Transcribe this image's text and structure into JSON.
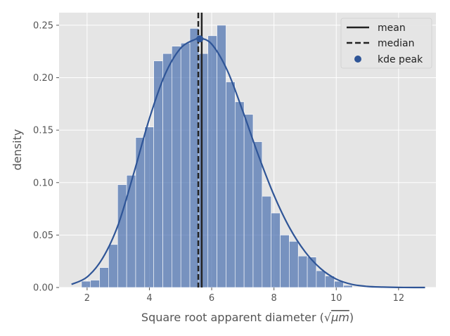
{
  "chart_data": {
    "type": "bar",
    "title": "",
    "xlabel": "Square root apparent diameter (√μm)",
    "xlabel_prefix": "Square root apparent diameter (",
    "xlabel_unit": "μm",
    "xlabel_suffix": ")",
    "ylabel": "density",
    "xlim": [
      1.1,
      13.2
    ],
    "ylim": [
      0,
      0.262
    ],
    "xticks": [
      "2",
      "4",
      "6",
      "8",
      "10",
      "12"
    ],
    "xtick_values": [
      2,
      4,
      6,
      8,
      10,
      12
    ],
    "yticks": [
      "0.00",
      "0.05",
      "0.10",
      "0.15",
      "0.20",
      "0.25"
    ],
    "ytick_values": [
      0,
      0.05,
      0.1,
      0.15,
      0.2,
      0.25
    ],
    "grid": true,
    "legend_position": "top-right",
    "histogram": {
      "bin_width": 0.29,
      "bin_starts": [
        1.82,
        2.11,
        2.4,
        2.69,
        2.98,
        3.27,
        3.56,
        3.85,
        4.14,
        4.43,
        4.72,
        5.01,
        5.3,
        5.59,
        5.88,
        6.17,
        6.46,
        6.75,
        7.04,
        7.33,
        7.62,
        7.91,
        8.2,
        8.49,
        8.78,
        9.07,
        9.36,
        9.65,
        9.94,
        10.23
      ],
      "values": [
        0.006,
        0.007,
        0.019,
        0.041,
        0.098,
        0.107,
        0.143,
        0.153,
        0.216,
        0.223,
        0.23,
        0.233,
        0.247,
        0.223,
        0.24,
        0.25,
        0.196,
        0.177,
        0.165,
        0.139,
        0.087,
        0.071,
        0.05,
        0.044,
        0.03,
        0.029,
        0.016,
        0.011,
        0.006,
        0.002
      ]
    },
    "kde": {
      "x": [
        1.5,
        2.0,
        2.5,
        3.0,
        3.5,
        4.0,
        4.5,
        5.0,
        5.5,
        5.6,
        6.0,
        6.5,
        7.0,
        7.5,
        8.0,
        8.5,
        9.0,
        9.5,
        10.0,
        10.5,
        11.0,
        11.5,
        12.0,
        12.5,
        12.85
      ],
      "y": [
        0.003,
        0.01,
        0.028,
        0.06,
        0.109,
        0.161,
        0.203,
        0.228,
        0.237,
        0.238,
        0.232,
        0.207,
        0.168,
        0.126,
        0.088,
        0.057,
        0.034,
        0.018,
        0.008,
        0.003,
        0.001,
        0.0004,
        0.0001,
        0.0,
        0.0
      ]
    },
    "mean": 5.68,
    "median": 5.57,
    "kde_peak": {
      "x": 5.62,
      "y": 0.237
    },
    "legend": [
      {
        "label": "mean",
        "style": "solid"
      },
      {
        "label": "median",
        "style": "dashed"
      },
      {
        "label": "kde peak",
        "style": "dot"
      }
    ],
    "colors": {
      "bar": "#4c72b0",
      "kde": "#2f5597",
      "lines": "#222222",
      "background": "#e5e5e5",
      "grid": "#ffffff"
    }
  }
}
